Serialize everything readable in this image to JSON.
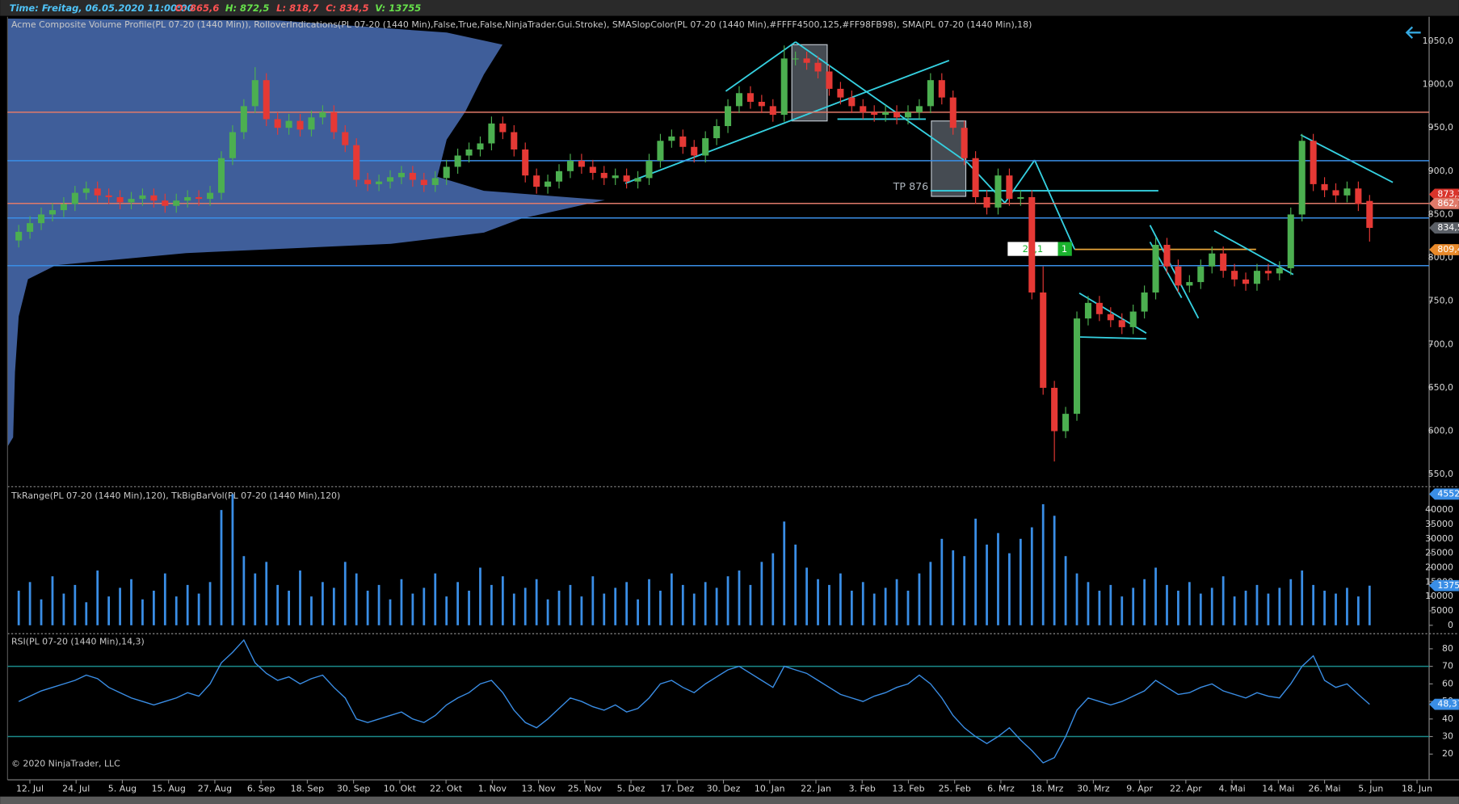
{
  "header": {
    "time": "Time: Freitag, 06.05.2020 11:00:00",
    "open": "O: 865,6",
    "high": "H: 872,5",
    "low": "L: 818,7",
    "close": "C: 834,5",
    "volume": "V: 13755"
  },
  "copyright": "© 2020 NinjaTrader, LLC",
  "x_axis_labels": [
    "12. Jul",
    "24. Jul",
    "5. Aug",
    "15. Aug",
    "27. Aug",
    "6. Sep",
    "18. Sep",
    "30. Sep",
    "10. Okt",
    "22. Okt",
    "1. Nov",
    "13. Nov",
    "25. Nov",
    "5. Dez",
    "17. Dez",
    "30. Dez",
    "10. Jan",
    "22. Jan",
    "3. Feb",
    "13. Feb",
    "25. Feb",
    "6. Mrz",
    "18. Mrz",
    "30. Mrz",
    "9. Apr",
    "22. Apr",
    "4. Mai",
    "14. Mai",
    "26. Mai",
    "5. Jun",
    "18. Jun"
  ],
  "chart_data": [
    {
      "type": "candlestick",
      "title": "Acme Composite Volume Profile(PL 07-20 (1440 Min)), RolloverIndications(PL 07-20 (1440 Min),False,True,False,NinjaTrader.Gui.Stroke), SMASlopColor(PL 07-20 (1440 Min),#FFFF4500,125,#FF98FB98), SMA(PL 07-20 (1440 Min),18)",
      "up_color": "#4caf50",
      "down_color": "#e53935",
      "open": [
        820,
        830,
        840,
        850,
        855,
        862,
        875,
        880,
        872,
        870,
        864,
        868,
        872,
        866,
        860,
        866,
        870,
        868,
        875,
        915,
        945,
        975,
        1005,
        960,
        950,
        958,
        948,
        962,
        968,
        945,
        930,
        890,
        885,
        888,
        893,
        898,
        890,
        884,
        892,
        905,
        918,
        925,
        932,
        955,
        945,
        925,
        895,
        882,
        888,
        900,
        912,
        905,
        898,
        892,
        895,
        888,
        892,
        912,
        935,
        940,
        928,
        918,
        938,
        952,
        975,
        990,
        980,
        975,
        965,
        1030,
        1030,
        1025,
        1015,
        995,
        985,
        975,
        968,
        965,
        968,
        962,
        968,
        975,
        1005,
        985,
        950,
        915,
        870,
        858,
        895,
        868,
        870,
        760,
        650,
        600,
        620,
        730,
        748,
        735,
        728,
        720,
        738,
        760,
        815,
        790,
        768,
        772,
        790,
        805,
        785,
        775,
        770,
        785,
        782,
        788,
        850,
        935,
        885,
        878,
        872,
        880,
        865.6
      ],
      "high": [
        838,
        848,
        858,
        863,
        870,
        883,
        888,
        888,
        880,
        878,
        876,
        880,
        880,
        874,
        874,
        878,
        878,
        883,
        923,
        953,
        983,
        1020,
        1013,
        968,
        966,
        966,
        970,
        976,
        976,
        953,
        938,
        898,
        896,
        901,
        906,
        906,
        898,
        900,
        913,
        926,
        933,
        940,
        963,
        963,
        953,
        933,
        903,
        896,
        908,
        920,
        920,
        913,
        906,
        903,
        903,
        900,
        920,
        943,
        948,
        948,
        936,
        946,
        960,
        983,
        998,
        998,
        988,
        983,
        1045,
        1038,
        1038,
        1033,
        1023,
        1003,
        993,
        983,
        976,
        976,
        976,
        976,
        983,
        1013,
        1013,
        993,
        958,
        923,
        878,
        903,
        903,
        878,
        878,
        790,
        658,
        628,
        738,
        756,
        756,
        743,
        736,
        746,
        768,
        823,
        823,
        798,
        780,
        798,
        813,
        813,
        793,
        783,
        793,
        793,
        796,
        858,
        943,
        943,
        893,
        886,
        888,
        888,
        872.5
      ],
      "low": [
        812,
        822,
        832,
        842,
        847,
        854,
        867,
        864,
        862,
        856,
        856,
        860,
        858,
        852,
        852,
        858,
        860,
        860,
        867,
        907,
        937,
        967,
        952,
        942,
        942,
        940,
        940,
        954,
        937,
        922,
        882,
        877,
        877,
        880,
        885,
        882,
        876,
        876,
        884,
        897,
        910,
        917,
        924,
        937,
        917,
        887,
        874,
        874,
        880,
        892,
        897,
        890,
        884,
        884,
        880,
        880,
        884,
        904,
        927,
        920,
        910,
        910,
        930,
        944,
        967,
        972,
        967,
        957,
        957,
        1022,
        1017,
        1007,
        987,
        977,
        967,
        960,
        957,
        957,
        954,
        954,
        960,
        967,
        977,
        942,
        907,
        862,
        850,
        850,
        860,
        860,
        752,
        642,
        565,
        592,
        612,
        722,
        727,
        720,
        712,
        712,
        730,
        752,
        782,
        760,
        760,
        764,
        782,
        777,
        767,
        762,
        762,
        774,
        774,
        780,
        842,
        877,
        870,
        864,
        864,
        854,
        818.7
      ],
      "close": [
        830,
        840,
        850,
        855,
        862,
        875,
        880,
        872,
        870,
        864,
        868,
        872,
        866,
        860,
        866,
        870,
        868,
        875,
        915,
        945,
        975,
        1005,
        960,
        950,
        958,
        948,
        962,
        968,
        945,
        930,
        890,
        885,
        888,
        893,
        898,
        890,
        884,
        892,
        905,
        918,
        925,
        932,
        955,
        945,
        925,
        895,
        882,
        888,
        900,
        912,
        905,
        898,
        892,
        895,
        888,
        892,
        912,
        935,
        940,
        928,
        918,
        938,
        952,
        975,
        990,
        980,
        975,
        965,
        1030,
        1030,
        1025,
        1015,
        995,
        985,
        975,
        968,
        965,
        968,
        962,
        968,
        975,
        1005,
        985,
        950,
        915,
        870,
        858,
        895,
        868,
        870,
        760,
        650,
        600,
        620,
        730,
        748,
        735,
        728,
        720,
        738,
        760,
        815,
        790,
        768,
        772,
        790,
        805,
        785,
        775,
        770,
        785,
        782,
        788,
        850,
        935,
        885,
        878,
        872,
        880,
        862,
        834.5
      ],
      "ylim": [
        537,
        1076
      ],
      "yticks": [
        {
          "value": 550,
          "label": "550,0"
        },
        {
          "value": 600,
          "label": "600,0"
        },
        {
          "value": 650,
          "label": "650,0"
        },
        {
          "value": 700,
          "label": "700,0"
        },
        {
          "value": 750,
          "label": "750,0"
        },
        {
          "value": 800,
          "label": "800,0"
        },
        {
          "value": 850,
          "label": "850,0"
        },
        {
          "value": 900,
          "label": "900,0"
        },
        {
          "value": 950,
          "label": "950,0"
        },
        {
          "value": 1000,
          "label": "1000,0"
        },
        {
          "value": 1050,
          "label": "1050,0"
        }
      ],
      "levels": [
        {
          "value": 968,
          "color": "#e07a6a"
        },
        {
          "value": 862.7,
          "color": "#e07a6a"
        },
        {
          "value": 912,
          "color": "#3a8ee6"
        },
        {
          "value": 846,
          "color": "#3a8ee6"
        },
        {
          "value": 791,
          "color": "#3a8ee6"
        }
      ],
      "markers": [
        {
          "value": 873.3,
          "label": "873,3",
          "color": "#d9342b"
        },
        {
          "value": 862.7,
          "label": "862,7",
          "color": "#e07a6a"
        },
        {
          "value": 834.5,
          "label": "834,5",
          "color": "#5a5f66"
        },
        {
          "value": 809.4,
          "label": "809,4",
          "color": "#e8892a"
        }
      ],
      "annotations": [
        "TP 876",
        "25,1",
        "1"
      ]
    },
    {
      "type": "bar",
      "title": "TkRange(PL 07-20 (1440 Min),120), TkBigBarVol(PL 07-20 (1440 Min),120)",
      "color": "#3a8ee6",
      "values": [
        12000,
        15000,
        9000,
        17000,
        11000,
        14000,
        8000,
        19000,
        10000,
        13000,
        16000,
        9000,
        12000,
        18000,
        10000,
        14000,
        11000,
        15000,
        40000,
        45520,
        24000,
        18000,
        22000,
        14000,
        12000,
        19000,
        10000,
        15000,
        13000,
        22000,
        18000,
        12000,
        14000,
        9000,
        16000,
        11000,
        13000,
        18000,
        10000,
        15000,
        12000,
        20000,
        14000,
        17000,
        11000,
        13000,
        16000,
        9000,
        12000,
        14000,
        10000,
        17000,
        11000,
        13000,
        15000,
        9000,
        16000,
        12000,
        18000,
        14000,
        11000,
        15000,
        13000,
        17000,
        19000,
        14000,
        22000,
        25000,
        36000,
        28000,
        20000,
        16000,
        14000,
        18000,
        12000,
        15000,
        11000,
        13000,
        16000,
        12000,
        18000,
        22000,
        30000,
        26000,
        24000,
        37000,
        28000,
        32000,
        25000,
        30000,
        34000,
        42000,
        38000,
        24000,
        18000,
        15000,
        12000,
        14000,
        10000,
        13000,
        16000,
        20000,
        14000,
        12000,
        15000,
        11000,
        13000,
        17000,
        10000,
        12000,
        14000,
        11000,
        13000,
        16000,
        19000,
        14000,
        12000,
        11000,
        13000,
        10000,
        13755
      ],
      "ylim": [
        -2600,
        46800
      ],
      "yticks": [
        0,
        5000,
        10000,
        15000,
        20000,
        25000,
        30000,
        35000,
        40000
      ],
      "markers": [
        {
          "value": 45520,
          "label": "45520",
          "color": "#3a8ee6"
        },
        {
          "value": 13755,
          "label": "13755",
          "color": "#3a8ee6"
        }
      ]
    },
    {
      "type": "line",
      "title": "RSI(PL 07-20 (1440 Min),14,3)",
      "color": "#3a8ee6",
      "values": [
        50,
        53,
        56,
        58,
        60,
        62,
        65,
        63,
        58,
        55,
        52,
        50,
        48,
        50,
        52,
        55,
        53,
        60,
        72,
        78,
        85,
        72,
        66,
        62,
        64,
        60,
        63,
        65,
        58,
        52,
        40,
        38,
        40,
        42,
        44,
        40,
        38,
        42,
        48,
        52,
        55,
        60,
        62,
        55,
        45,
        38,
        35,
        40,
        46,
        52,
        50,
        47,
        45,
        48,
        44,
        46,
        52,
        60,
        62,
        58,
        55,
        60,
        64,
        68,
        70,
        66,
        62,
        58,
        70,
        68,
        66,
        62,
        58,
        54,
        52,
        50,
        53,
        55,
        58,
        60,
        65,
        60,
        52,
        42,
        35,
        30,
        26,
        30,
        35,
        28,
        22,
        15,
        18,
        30,
        45,
        52,
        50,
        48,
        50,
        53,
        56,
        62,
        58,
        54,
        55,
        58,
        60,
        56,
        54,
        52,
        55,
        53,
        52,
        60,
        70,
        76,
        62,
        58,
        60,
        54,
        48.37
      ],
      "ylim": [
        8,
        87
      ],
      "yticks": [
        20,
        30,
        40,
        50,
        60,
        70,
        80
      ],
      "levels": [
        {
          "value": 70,
          "color": "#1b8a8a"
        },
        {
          "value": 30,
          "color": "#1b8a8a"
        }
      ],
      "markers": [
        {
          "value": 48.37,
          "label": "48,37",
          "color": "#3a8ee6"
        }
      ]
    }
  ]
}
